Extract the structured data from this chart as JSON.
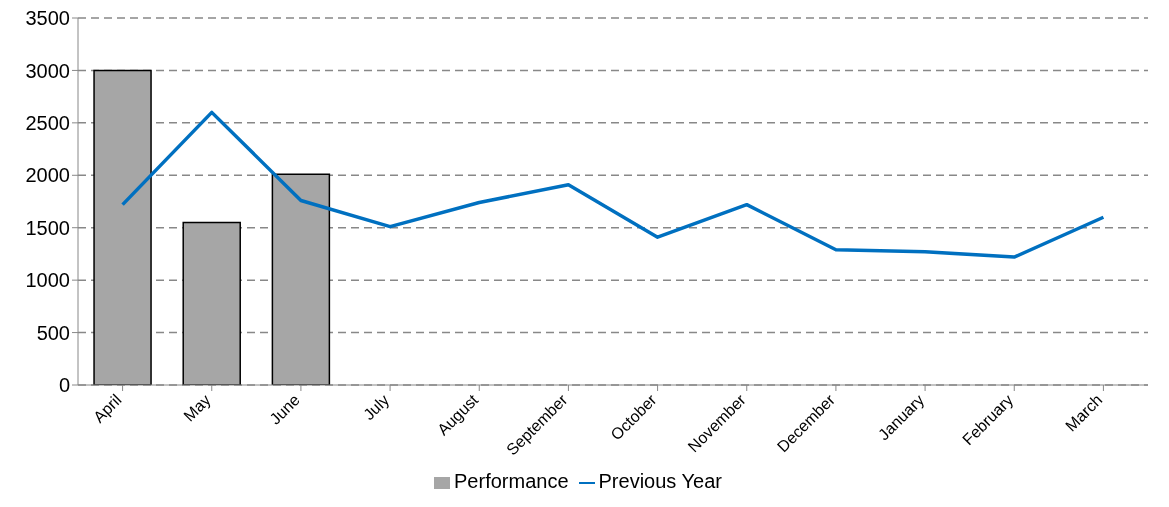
{
  "chart_data": {
    "type": "bar",
    "categories": [
      "April",
      "May",
      "June",
      "July",
      "August",
      "September",
      "October",
      "November",
      "December",
      "January",
      "February",
      "March"
    ],
    "series": [
      {
        "name": "Performance",
        "color": "#a6a6a6",
        "values": [
          3000,
          1550,
          2010,
          null,
          null,
          null,
          null,
          null,
          null,
          null,
          null,
          null
        ]
      },
      {
        "name": "Previous Year",
        "type": "line",
        "color": "#0070c0",
        "values": [
          1720,
          2600,
          1760,
          1510,
          1740,
          1910,
          1410,
          1720,
          1290,
          1270,
          1220,
          1600
        ]
      }
    ],
    "ylim": [
      0,
      3500
    ],
    "yticks": [
      0,
      500,
      1000,
      1500,
      2000,
      2500,
      3000,
      3500
    ],
    "grid": "y",
    "legend": "bottom",
    "marker": "none",
    "line_style": "solid"
  }
}
